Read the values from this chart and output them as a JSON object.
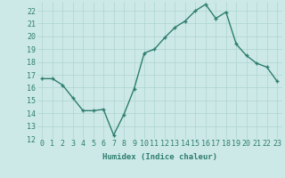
{
  "x": [
    0,
    1,
    2,
    3,
    4,
    5,
    6,
    7,
    8,
    9,
    10,
    11,
    12,
    13,
    14,
    15,
    16,
    17,
    18,
    19,
    20,
    21,
    22,
    23
  ],
  "y": [
    16.7,
    16.7,
    16.2,
    15.2,
    14.2,
    14.2,
    14.3,
    12.3,
    13.9,
    15.9,
    18.7,
    19.0,
    19.9,
    20.7,
    21.2,
    22.0,
    22.5,
    21.4,
    21.9,
    19.4,
    18.5,
    17.9,
    17.6,
    16.5
  ],
  "line_color": "#2e7d6e",
  "marker": "+",
  "marker_size": 3,
  "bg_color": "#cce9e7",
  "grid_color": "#aed4d1",
  "xlabel": "Humidex (Indice chaleur)",
  "xlim": [
    -0.5,
    23.5
  ],
  "ylim": [
    12,
    22.7
  ],
  "yticks": [
    12,
    13,
    14,
    15,
    16,
    17,
    18,
    19,
    20,
    21,
    22
  ],
  "xticks": [
    0,
    1,
    2,
    3,
    4,
    5,
    6,
    7,
    8,
    9,
    10,
    11,
    12,
    13,
    14,
    15,
    16,
    17,
    18,
    19,
    20,
    21,
    22,
    23
  ],
  "tick_color": "#2e7d6e",
  "label_fontsize": 6.5,
  "tick_fontsize": 6,
  "line_width": 1.0,
  "marker_edge_width": 1.0
}
